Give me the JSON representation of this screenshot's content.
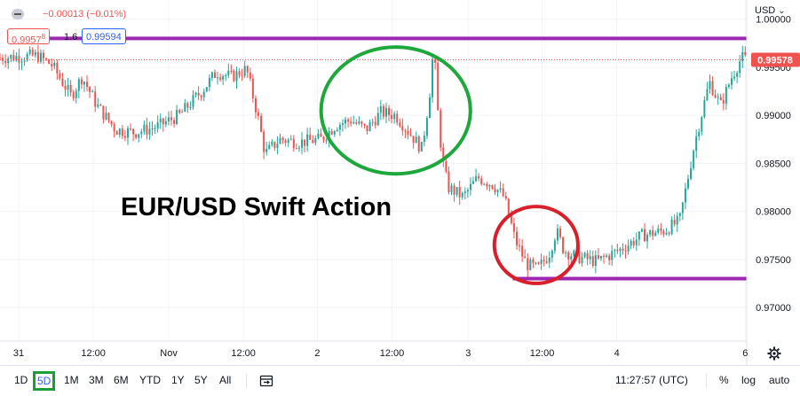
{
  "header": {
    "change_text": "−0.00013 (−0.01%)",
    "bid_price": "0.9957",
    "bid_price_sup": "8",
    "spread": "1.6",
    "ask_price": "0.99594",
    "currency": "USD",
    "currency_chevron": "⌄"
  },
  "annotation": {
    "title": "EUR/USD Swift Action"
  },
  "price_axis": {
    "labels": [
      "1.00000",
      "0.99500",
      "0.99000",
      "0.98500",
      "0.98000",
      "0.97500",
      "0.97000"
    ],
    "current_price_label": "0.99578"
  },
  "time_axis": {
    "labels": [
      "31",
      "12:00",
      "Nov",
      "12:00",
      "2",
      "12:00",
      "3",
      "12:00",
      "4",
      "6"
    ]
  },
  "toolbar": {
    "timeframes": [
      "1D",
      "5D",
      "1M",
      "3M",
      "6M",
      "YTD",
      "1Y",
      "5Y",
      "All"
    ],
    "active_timeframe": "5D",
    "clock": "11:27:57 (UTC)",
    "percent_label": "%",
    "log_label": "log",
    "auto_label": "auto"
  },
  "colors": {
    "up": "#26a69a",
    "down": "#ef5350",
    "resistance_line": "#9c27b0",
    "green_circle": "#1ea83c",
    "red_circle": "#d8202b",
    "price_tag": "#ef5350"
  },
  "chart_data": {
    "type": "line",
    "series_style": "candlestick",
    "symbol": "EUR/USD",
    "ylim": [
      0.9665,
      1.002
    ],
    "y_ticks": [
      1.0,
      0.995,
      0.99,
      0.985,
      0.98,
      0.975,
      0.97
    ],
    "x_labels": [
      "31",
      "12:00",
      "Nov",
      "12:00",
      "2",
      "12:00",
      "3",
      "12:00",
      "4",
      "6"
    ],
    "current_price": 0.99578,
    "horizontal_lines": [
      {
        "price": 0.998,
        "x_range": [
          0.0,
          1.0
        ]
      },
      {
        "price": 0.973,
        "x_range": [
          0.67,
          1.0
        ]
      }
    ],
    "circles": [
      {
        "color": "green",
        "center_price": 0.9905,
        "x_frac": 0.53,
        "x_half_width": 0.1,
        "price_half_height": 0.0066
      },
      {
        "color": "red",
        "center_price": 0.9765,
        "x_frac": 0.718,
        "x_half_width": 0.056,
        "price_half_height": 0.004
      }
    ],
    "price_path": [
      [
        0.0,
        0.996
      ],
      [
        0.05,
        0.9962
      ],
      [
        0.07,
        0.9952
      ],
      [
        0.095,
        0.992
      ],
      [
        0.11,
        0.994
      ],
      [
        0.13,
        0.991
      ],
      [
        0.155,
        0.9885
      ],
      [
        0.18,
        0.9882
      ],
      [
        0.21,
        0.9888
      ],
      [
        0.24,
        0.99
      ],
      [
        0.27,
        0.9925
      ],
      [
        0.29,
        0.9945
      ],
      [
        0.31,
        0.994
      ],
      [
        0.33,
        0.9948
      ],
      [
        0.345,
        0.99
      ],
      [
        0.355,
        0.986
      ],
      [
        0.375,
        0.9875
      ],
      [
        0.4,
        0.9872
      ],
      [
        0.43,
        0.9875
      ],
      [
        0.45,
        0.989
      ],
      [
        0.47,
        0.9895
      ],
      [
        0.49,
        0.9885
      ],
      [
        0.51,
        0.9903
      ],
      [
        0.53,
        0.99
      ],
      [
        0.55,
        0.988
      ],
      [
        0.565,
        0.9865
      ],
      [
        0.575,
        0.992
      ],
      [
        0.581,
        0.9975
      ],
      [
        0.585,
        0.9915
      ],
      [
        0.592,
        0.9855
      ],
      [
        0.6,
        0.9825
      ],
      [
        0.62,
        0.9815
      ],
      [
        0.64,
        0.9835
      ],
      [
        0.66,
        0.9828
      ],
      [
        0.675,
        0.9815
      ],
      [
        0.69,
        0.977
      ],
      [
        0.705,
        0.9745
      ],
      [
        0.72,
        0.974
      ],
      [
        0.735,
        0.9755
      ],
      [
        0.745,
        0.978
      ],
      [
        0.755,
        0.976
      ],
      [
        0.77,
        0.9753
      ],
      [
        0.8,
        0.9748
      ],
      [
        0.83,
        0.976
      ],
      [
        0.86,
        0.9775
      ],
      [
        0.89,
        0.978
      ],
      [
        0.91,
        0.979
      ],
      [
        0.93,
        0.987
      ],
      [
        0.95,
        0.9935
      ],
      [
        0.965,
        0.991
      ],
      [
        0.98,
        0.994
      ],
      [
        0.993,
        0.996
      ],
      [
        1.0,
        0.99578
      ]
    ]
  }
}
